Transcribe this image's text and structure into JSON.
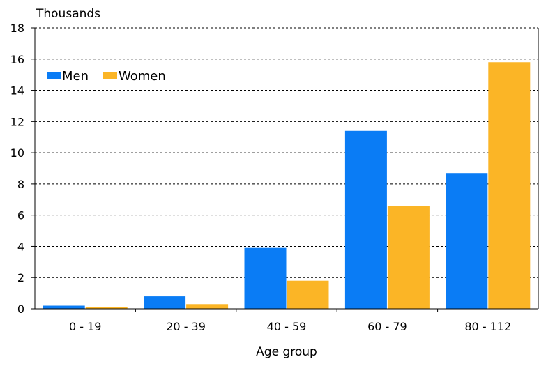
{
  "chart_data": {
    "type": "bar",
    "ylabel": "Thousands",
    "xlabel": "Age group",
    "categories": [
      "0 - 19",
      "20 - 39",
      "40 - 59",
      "60 - 79",
      "80 - 112"
    ],
    "series": [
      {
        "name": "Men",
        "color": "#0a7cf5",
        "values": [
          0.2,
          0.8,
          3.9,
          11.4,
          8.7
        ]
      },
      {
        "name": "Women",
        "color": "#fbb526",
        "values": [
          0.1,
          0.3,
          1.8,
          6.6,
          15.8
        ]
      }
    ],
    "ylim": [
      0,
      18
    ],
    "yticks": [
      0,
      2,
      4,
      6,
      8,
      10,
      12,
      14,
      16,
      18
    ],
    "grid": true,
    "legend_position": "top-left"
  }
}
